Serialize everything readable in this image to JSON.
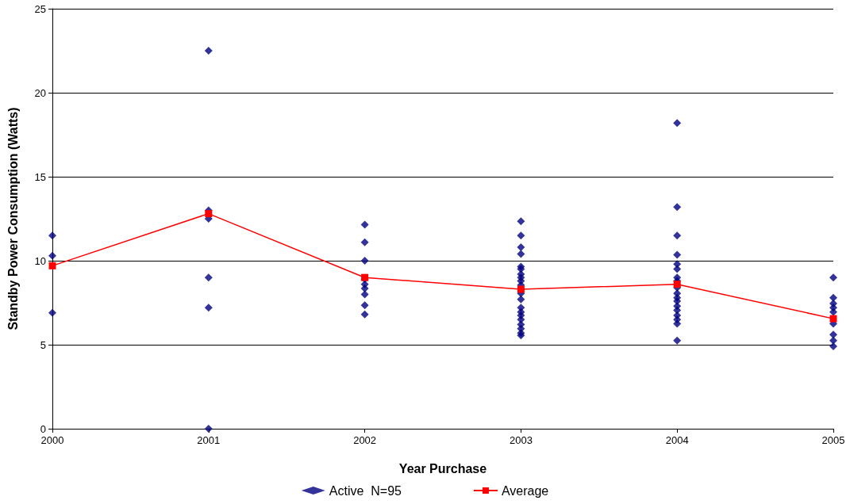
{
  "chart_data": {
    "type": "scatter",
    "xlabel": "Year Purchase",
    "ylabel": "Standby Power Consumption (Watts)",
    "xlim": [
      2000,
      2005
    ],
    "xticks": [
      2000,
      2001,
      2002,
      2003,
      2004,
      2005
    ],
    "ylim": [
      0,
      25
    ],
    "yticks": [
      0,
      5,
      10,
      15,
      20,
      25
    ],
    "grid": "y",
    "legend": "bottom",
    "series": [
      {
        "name": "Active  N=95",
        "marker": "diamond",
        "color": "#000080",
        "x": [
          2000,
          2000,
          2000,
          2001,
          2001,
          2001,
          2001,
          2001,
          2001,
          2002,
          2002,
          2002,
          2002,
          2002,
          2002,
          2002,
          2002,
          2002,
          2003,
          2003,
          2003,
          2003,
          2003,
          2003,
          2003,
          2003,
          2003,
          2003,
          2003,
          2003,
          2003,
          2003,
          2003,
          2003,
          2003,
          2003,
          2003,
          2003,
          2004,
          2004,
          2004,
          2004,
          2004,
          2004,
          2004,
          2004,
          2004,
          2004,
          2004,
          2004,
          2004,
          2004,
          2004,
          2004,
          2004,
          2004,
          2005,
          2005,
          2005,
          2005,
          2005,
          2005,
          2005,
          2005,
          2005
        ],
        "values": [
          11.5,
          10.3,
          6.9,
          22.5,
          13.0,
          12.5,
          9.0,
          7.2,
          0,
          12.15,
          11.1,
          10.0,
          8.9,
          8.6,
          8.35,
          8.0,
          7.35,
          6.8,
          12.35,
          11.5,
          10.8,
          10.4,
          9.65,
          9.5,
          9.2,
          9.0,
          8.8,
          8.55,
          8.05,
          7.7,
          7.2,
          6.95,
          6.75,
          6.5,
          6.2,
          5.95,
          5.7,
          5.55,
          18.2,
          13.2,
          11.5,
          10.35,
          9.8,
          9.5,
          9.0,
          8.8,
          8.4,
          8.05,
          7.8,
          7.6,
          7.3,
          7.05,
          6.75,
          6.5,
          6.25,
          5.25,
          9.0,
          7.8,
          7.45,
          7.2,
          6.95,
          6.25,
          5.6,
          5.25,
          4.9
        ]
      },
      {
        "name": "Average",
        "type": "line",
        "marker": "square",
        "line_style": "solid",
        "color": "#ff0000",
        "x": [
          2000,
          2001,
          2002,
          2003,
          2004,
          2005
        ],
        "values": [
          9.7,
          12.8,
          9.0,
          8.3,
          8.6,
          6.55
        ]
      }
    ]
  }
}
